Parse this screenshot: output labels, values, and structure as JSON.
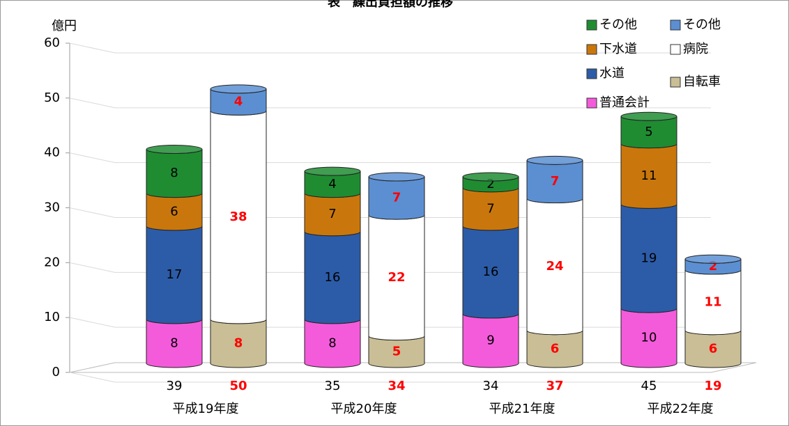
{
  "chart_data": {
    "type": "stacked-cylinder",
    "title": "表　繰出負担額の推移",
    "y_label": "億円",
    "categories": [
      "平成19年度",
      "平成20年度",
      "平成21年度",
      "平成22年度"
    ],
    "ylim": [
      0,
      60
    ],
    "yticks": [
      0,
      10,
      20,
      30,
      40,
      50,
      60
    ],
    "grid": true,
    "series": [
      {
        "name": "普通会計",
        "stack": 0,
        "color": "#f45bdb",
        "values": [
          8,
          8,
          9,
          10
        ]
      },
      {
        "name": "水道",
        "stack": 0,
        "color": "#2c5ca8",
        "values": [
          17,
          16,
          16,
          19
        ]
      },
      {
        "name": "下水道",
        "stack": 0,
        "color": "#c9770c",
        "values": [
          6,
          7,
          7,
          11
        ]
      },
      {
        "name": "その他",
        "stack": 0,
        "color": "#1f8c32",
        "values": [
          8,
          4,
          2,
          5
        ]
      },
      {
        "name": "自転車",
        "stack": 1,
        "color": "#c9be95",
        "values": [
          8,
          5,
          6,
          6
        ]
      },
      {
        "name": "病院",
        "stack": 1,
        "color": "#ffffff",
        "values": [
          38,
          22,
          24,
          11
        ]
      },
      {
        "name": "その他",
        "stack": 1,
        "color": "#5b8fd2",
        "values": [
          4,
          7,
          7,
          2
        ]
      }
    ],
    "totals": [
      [
        39,
        35,
        34,
        45
      ],
      [
        50,
        34,
        37,
        19
      ]
    ],
    "label_colors": [
      "#000000",
      "#ff0000"
    ]
  }
}
